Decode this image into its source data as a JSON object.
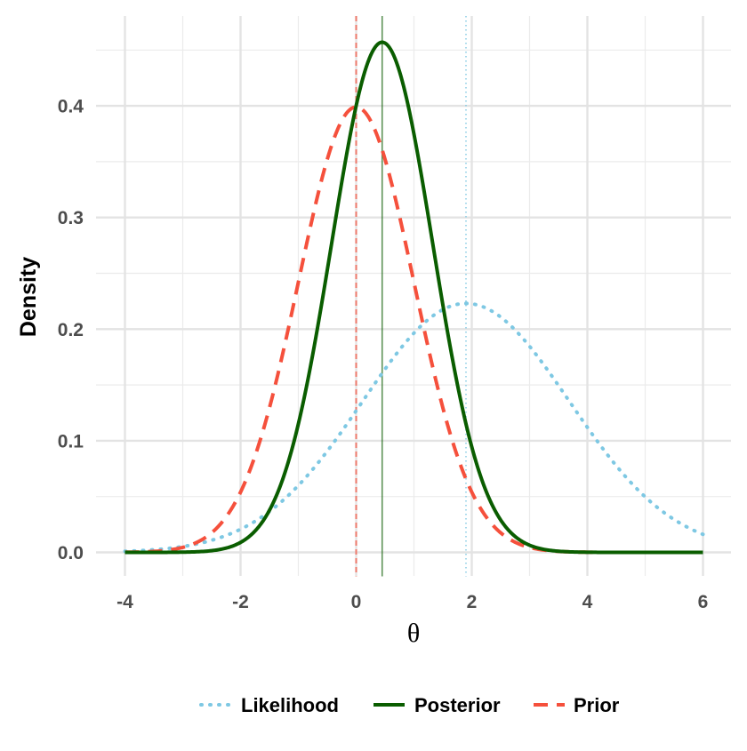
{
  "chart_data": {
    "type": "line",
    "xlabel": "θ",
    "ylabel": "Density",
    "xlim": [
      -4,
      6
    ],
    "ylim": [
      0,
      0.46
    ],
    "x_ticks": [
      -4,
      -2,
      0,
      2,
      4,
      6
    ],
    "y_ticks": [
      0.0,
      0.1,
      0.2,
      0.3,
      0.4
    ],
    "x_tick_labels": [
      "-4",
      "-2",
      "0",
      "2",
      "4",
      "6"
    ],
    "y_tick_labels": [
      "0.0",
      "0.1",
      "0.2",
      "0.3",
      "0.4"
    ],
    "grid": true,
    "legend_position": "bottom",
    "series": [
      {
        "name": "Likelihood",
        "color": "#7ec8e3",
        "dash": "dotted",
        "distribution": {
          "mean": 1.9,
          "sd": 1.789
        },
        "x": [
          -4,
          -3,
          -2,
          -1,
          0,
          1,
          1.9,
          3,
          4,
          5,
          6
        ],
        "values": [
          0.0015,
          0.0063,
          0.0208,
          0.0595,
          0.1274,
          0.1963,
          0.223,
          0.1841,
          0.1123,
          0.0494,
          0.0163
        ],
        "reference_line": 1.9
      },
      {
        "name": "Posterior",
        "color": "#0a5d00",
        "dash": "solid",
        "distribution": {
          "mean": 0.45,
          "sd": 0.873
        },
        "x": [
          -4,
          -3,
          -2,
          -1,
          0,
          0.45,
          1,
          2,
          3,
          4,
          6
        ],
        "values": [
          0.0,
          0.0001,
          0.0093,
          0.1148,
          0.3947,
          0.457,
          0.3742,
          0.1133,
          0.0065,
          0.0001,
          0.0
        ],
        "reference_line": 0.45
      },
      {
        "name": "Prior",
        "color": "#f5503c",
        "dash": "dashed",
        "distribution": {
          "mean": 0,
          "sd": 1
        },
        "x": [
          -4,
          -3,
          -2,
          -1,
          0,
          1,
          2,
          3,
          4,
          6
        ],
        "values": [
          0.0001,
          0.0044,
          0.054,
          0.242,
          0.3989,
          0.242,
          0.054,
          0.0044,
          0.0001,
          0.0
        ],
        "reference_line": 0
      }
    ]
  }
}
